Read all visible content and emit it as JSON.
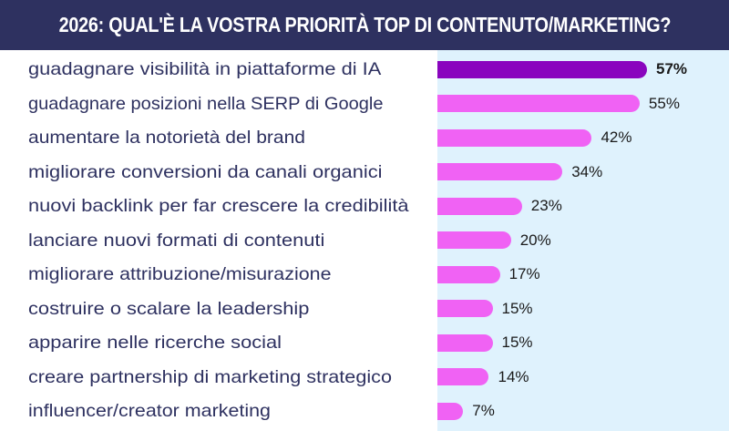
{
  "chart_data": {
    "type": "bar",
    "orientation": "horizontal",
    "title": "2026: QUAL'È LA VOSTRA PRIORITÀ TOP DI CONTENUTO/MARKETING?",
    "categories": [
      "guadagnare visibilità in piattaforme di IA",
      "guadagnare posizioni nella SERP di Google",
      "aumentare la notorietà del brand",
      "migliorare conversioni da canali organici",
      "nuovi backlink per far crescere la credibilità",
      "lanciare nuovi formati di contenuti",
      "migliorare attribuzione/misurazione",
      "costruire o scalare la leadership",
      "apparire nelle ricerche social",
      "creare partnership di marketing strategico",
      "influencer/creator marketing"
    ],
    "values": [
      57,
      55,
      42,
      34,
      23,
      20,
      17,
      15,
      15,
      14,
      7
    ],
    "value_labels": [
      "57%",
      "55%",
      "42%",
      "34%",
      "23%",
      "20%",
      "17%",
      "15%",
      "15%",
      "14%",
      "7%"
    ],
    "xlim": [
      0,
      79
    ],
    "grid": false,
    "colors": {
      "highlight": "#8a05be",
      "bar": "#f062f4",
      "title_bg": "#2e3160",
      "plot_bg": "#dff2fd",
      "label": "#2e3160"
    }
  }
}
